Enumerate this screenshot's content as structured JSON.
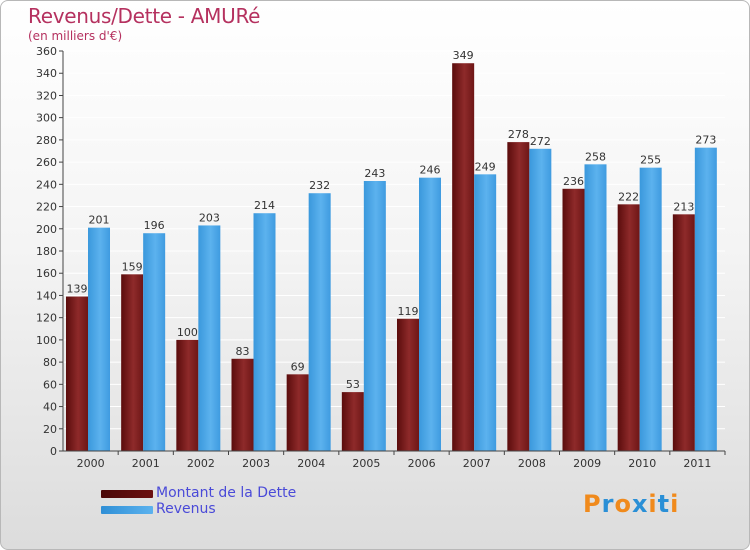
{
  "header": {
    "title": "Revenus/Dette - AMURé",
    "subtitle": "(en milliers d'€)"
  },
  "colors": {
    "dette": "#7d1e1e",
    "revenus": "#3d9ee3",
    "title": "#b5315f",
    "legend_text": "#4a4ad8"
  },
  "legend": [
    {
      "label": "Montant de la Dette",
      "color": "#6b0f0f"
    },
    {
      "label": "Revenus",
      "color": "#3d9ee3"
    }
  ],
  "logo": {
    "text": "Proxiti",
    "letter_colors": [
      "#f08a1c",
      "#2a8fd6",
      "#f08a1c",
      "#2a8fd6",
      "#f08a1c",
      "#2a8fd6",
      "#f08a1c"
    ]
  },
  "chart_data": {
    "type": "bar",
    "categories": [
      "2000",
      "2001",
      "2002",
      "2003",
      "2004",
      "2005",
      "2006",
      "2007",
      "2008",
      "2009",
      "2010",
      "2011"
    ],
    "series": [
      {
        "name": "Montant de la Dette",
        "values": [
          139,
          159,
          100,
          83,
          69,
          53,
          119,
          349,
          278,
          236,
          222,
          213
        ]
      },
      {
        "name": "Revenus",
        "values": [
          201,
          196,
          203,
          214,
          232,
          243,
          246,
          249,
          272,
          258,
          255,
          273
        ]
      }
    ],
    "ylim": [
      0,
      360
    ],
    "ytick_step": 20,
    "grid": true
  }
}
